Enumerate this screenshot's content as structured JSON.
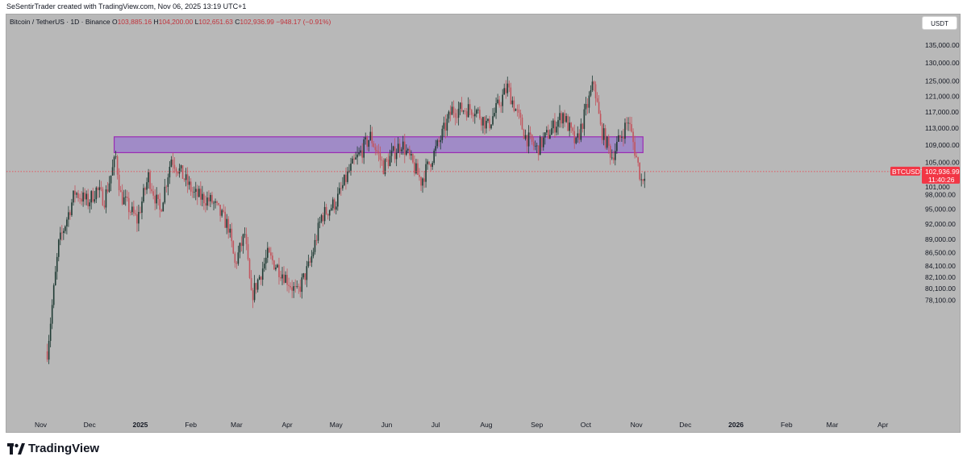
{
  "header": {
    "credit": "SeSentirTrader created with TradingView.com, Nov 06, 2025 13:19 UTC+1"
  },
  "legend": {
    "symbol": "Bitcoin / TetherUS · 1D · Binance",
    "o_label": "O",
    "o": "103,885.16",
    "h_label": "H",
    "h": "104,200.00",
    "l_label": "L",
    "l": "102,651.63",
    "c_label": "C",
    "c": "102,936.99",
    "change": "−948.17 (−0.91%)"
  },
  "currency_button": "USDT",
  "price_badge": {
    "ticker": "BTCUSDT",
    "price": "102,936.99",
    "countdown": "11:40:26",
    "color": "#f23645"
  },
  "partial_tick": "101,000",
  "brand": "TradingView",
  "colors": {
    "background": "#b8b8b8",
    "up": "#1f3b34",
    "down": "#c2555e",
    "zone_fill": "#9b82c9",
    "zone_stroke": "#9b2bb3"
  },
  "chart_data": {
    "type": "candlestick",
    "title": "Bitcoin / TetherUS · 1D · Binance",
    "y_ticks": [
      "135,000.00",
      "130,000.00",
      "125,000.00",
      "121,000.00",
      "117,000.00",
      "113,000.00",
      "109,000.00",
      "105,000.00",
      "98,000.00",
      "95,000.00",
      "92,000.00",
      "89,000.00",
      "86,500.00",
      "84,100.00",
      "82,100.00",
      "80,100.00",
      "78,100.00"
    ],
    "x_ticks": [
      "Nov",
      "Dec",
      "2025",
      "Feb",
      "Mar",
      "Apr",
      "May",
      "Jun",
      "Jul",
      "Aug",
      "Sep",
      "Oct",
      "Nov",
      "Dec",
      "2026",
      "Feb",
      "Mar",
      "Apr"
    ],
    "price_scale": "log",
    "zone": {
      "from": "2024-12-16",
      "to": "2025-11-05",
      "low": 107200,
      "high": 110900
    },
    "current_price": 102936.99,
    "close_path": [
      {
        "date": "2024-11-05",
        "price": 70000
      },
      {
        "date": "2024-11-12",
        "price": 88000
      },
      {
        "date": "2024-11-22",
        "price": 98500
      },
      {
        "date": "2024-11-30",
        "price": 96400
      },
      {
        "date": "2024-12-05",
        "price": 99000
      },
      {
        "date": "2024-12-10",
        "price": 97000
      },
      {
        "date": "2024-12-17",
        "price": 106100
      },
      {
        "date": "2024-12-20",
        "price": 97800
      },
      {
        "date": "2024-12-30",
        "price": 92700
      },
      {
        "date": "2025-01-06",
        "price": 101900
      },
      {
        "date": "2025-01-13",
        "price": 94500
      },
      {
        "date": "2025-01-20",
        "price": 106000
      },
      {
        "date": "2025-01-27",
        "price": 102000
      },
      {
        "date": "2025-02-03",
        "price": 98000
      },
      {
        "date": "2025-02-14",
        "price": 96500
      },
      {
        "date": "2025-02-24",
        "price": 91500
      },
      {
        "date": "2025-02-28",
        "price": 84300
      },
      {
        "date": "2025-03-06",
        "price": 90000
      },
      {
        "date": "2025-03-10",
        "price": 78600
      },
      {
        "date": "2025-03-20",
        "price": 86000
      },
      {
        "date": "2025-03-30",
        "price": 82500
      },
      {
        "date": "2025-04-07",
        "price": 79200
      },
      {
        "date": "2025-04-15",
        "price": 84500
      },
      {
        "date": "2025-04-22",
        "price": 93500
      },
      {
        "date": "2025-05-01",
        "price": 96500
      },
      {
        "date": "2025-05-09",
        "price": 103000
      },
      {
        "date": "2025-05-22",
        "price": 111000
      },
      {
        "date": "2025-05-30",
        "price": 104000
      },
      {
        "date": "2025-06-10",
        "price": 109500
      },
      {
        "date": "2025-06-22",
        "price": 100900
      },
      {
        "date": "2025-07-03",
        "price": 109500
      },
      {
        "date": "2025-07-11",
        "price": 117500
      },
      {
        "date": "2025-07-25",
        "price": 117800
      },
      {
        "date": "2025-08-02",
        "price": 113500
      },
      {
        "date": "2025-08-14",
        "price": 123300
      },
      {
        "date": "2025-08-25",
        "price": 111000
      },
      {
        "date": "2025-09-01",
        "price": 108000
      },
      {
        "date": "2025-09-17",
        "price": 116500
      },
      {
        "date": "2025-09-25",
        "price": 109000
      },
      {
        "date": "2025-10-06",
        "price": 124700
      },
      {
        "date": "2025-10-10",
        "price": 113000
      },
      {
        "date": "2025-10-17",
        "price": 106400
      },
      {
        "date": "2025-10-27",
        "price": 115000
      },
      {
        "date": "2025-11-04",
        "price": 101000
      },
      {
        "date": "2025-11-06",
        "price": 102937
      }
    ]
  }
}
